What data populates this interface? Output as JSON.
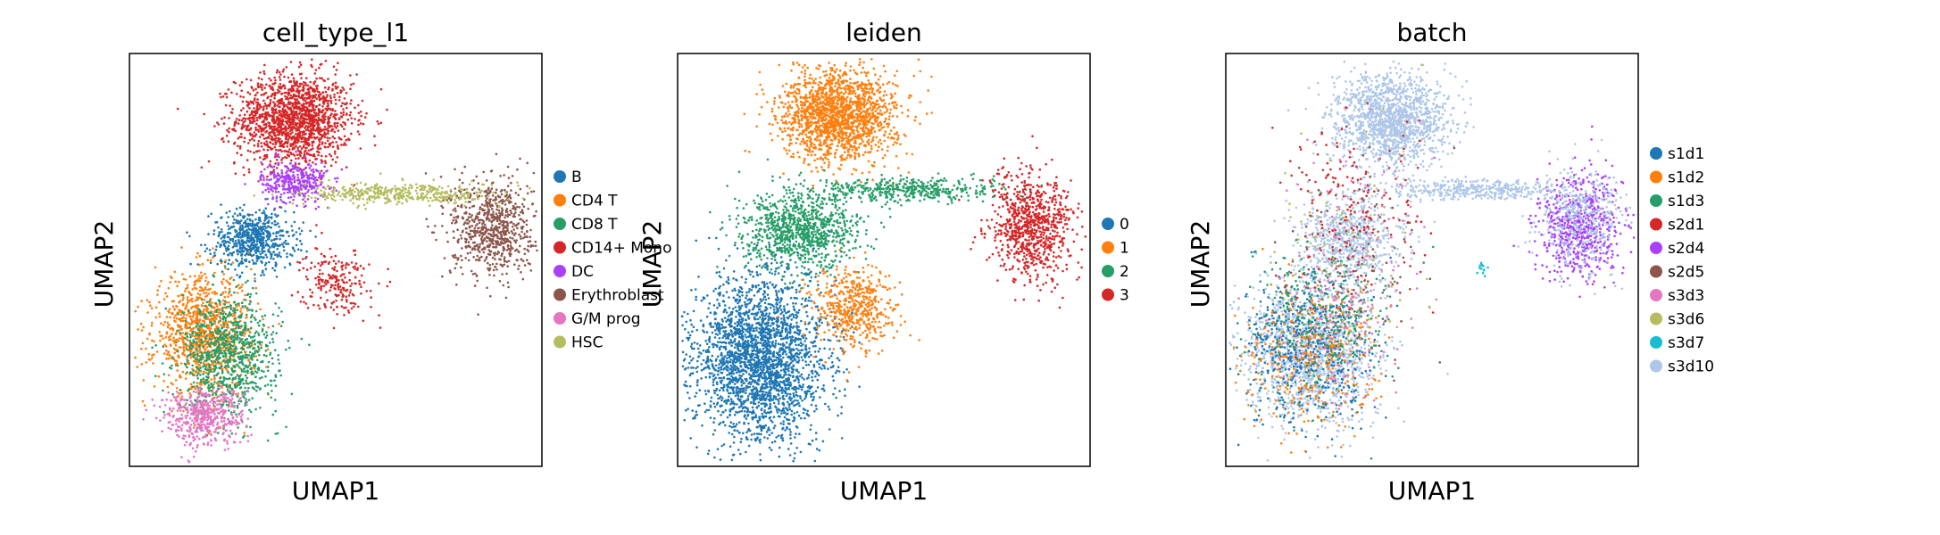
{
  "chart_data": [
    {
      "type": "scatter",
      "title": "cell_type_l1",
      "xlabel": "UMAP1",
      "ylabel": "UMAP2",
      "ticks": "none",
      "legend_position": "right",
      "categories": [
        "B",
        "CD4 T",
        "CD8 T",
        "CD14+ Mono",
        "DC",
        "Erythroblast",
        "G/M prog",
        "HSC"
      ],
      "colors": [
        "#1f77b4",
        "#ff7f0e",
        "#279e68",
        "#d62728",
        "#aa40fc",
        "#8c564b",
        "#e377c2",
        "#b5bd61"
      ],
      "clusters": [
        {
          "category": "CD14+ Mono",
          "x": 0.4,
          "y": 0.84,
          "sx": 0.07,
          "sy": 0.055,
          "n": 1600
        },
        {
          "category": "DC",
          "x": 0.4,
          "y": 0.69,
          "sx": 0.04,
          "sy": 0.025,
          "n": 350
        },
        {
          "category": "B",
          "x": 0.3,
          "y": 0.55,
          "sx": 0.05,
          "sy": 0.035,
          "n": 650
        },
        {
          "category": "CD4 T",
          "x": 0.18,
          "y": 0.32,
          "sx": 0.06,
          "sy": 0.07,
          "n": 1100
        },
        {
          "category": "CD8 T",
          "x": 0.24,
          "y": 0.27,
          "sx": 0.06,
          "sy": 0.07,
          "n": 900
        },
        {
          "category": "Erythroblast",
          "x": 0.88,
          "y": 0.58,
          "sx": 0.05,
          "sy": 0.06,
          "n": 750
        },
        {
          "category": "G/M prog",
          "x": 0.18,
          "y": 0.12,
          "sx": 0.05,
          "sy": 0.035,
          "n": 500
        },
        {
          "category": "HSC",
          "x": 0.66,
          "y": 0.66,
          "sx": 0.12,
          "sy": 0.013,
          "n": 420
        },
        {
          "category": "CD14+ Mono",
          "x": 0.5,
          "y": 0.45,
          "sx": 0.04,
          "sy": 0.04,
          "n": 220
        }
      ]
    },
    {
      "type": "scatter",
      "title": "leiden",
      "xlabel": "UMAP1",
      "ylabel": "UMAP2",
      "ticks": "none",
      "legend_position": "right",
      "categories": [
        "0",
        "1",
        "2",
        "3"
      ],
      "colors": [
        "#1f77b4",
        "#ff7f0e",
        "#279e68",
        "#d62728"
      ],
      "clusters": [
        {
          "category": "1",
          "x": 0.39,
          "y": 0.85,
          "sx": 0.07,
          "sy": 0.055,
          "n": 1700
        },
        {
          "category": "2",
          "x": 0.3,
          "y": 0.57,
          "sx": 0.07,
          "sy": 0.045,
          "n": 1000
        },
        {
          "category": "2",
          "x": 0.56,
          "y": 0.67,
          "sx": 0.11,
          "sy": 0.015,
          "n": 450
        },
        {
          "category": "0",
          "x": 0.2,
          "y": 0.26,
          "sx": 0.08,
          "sy": 0.1,
          "n": 2600
        },
        {
          "category": "1",
          "x": 0.43,
          "y": 0.38,
          "sx": 0.05,
          "sy": 0.05,
          "n": 520
        },
        {
          "category": "3",
          "x": 0.86,
          "y": 0.58,
          "sx": 0.05,
          "sy": 0.065,
          "n": 850
        }
      ]
    },
    {
      "type": "scatter",
      "title": "batch",
      "xlabel": "UMAP1",
      "ylabel": "UMAP2",
      "ticks": "none",
      "legend_position": "right",
      "categories": [
        "s1d1",
        "s1d2",
        "s1d3",
        "s2d1",
        "s2d4",
        "s2d5",
        "s3d3",
        "s3d6",
        "s3d7",
        "s3d10"
      ],
      "colors": [
        "#1f77b4",
        "#ff7f0e",
        "#279e68",
        "#d62728",
        "#aa40fc",
        "#8c564b",
        "#e377c2",
        "#b5bd61",
        "#17becf",
        "#aec7e8"
      ],
      "clusters": [
        {
          "category": "s3d10",
          "x": 0.4,
          "y": 0.84,
          "sx": 0.07,
          "sy": 0.055,
          "n": 1500
        },
        {
          "category": "s3d10",
          "x": 0.3,
          "y": 0.55,
          "sx": 0.06,
          "sy": 0.05,
          "n": 700
        },
        {
          "category": "s3d10",
          "x": 0.2,
          "y": 0.28,
          "sx": 0.08,
          "sy": 0.09,
          "n": 1500
        },
        {
          "category": "s1d1",
          "x": 0.2,
          "y": 0.28,
          "sx": 0.08,
          "sy": 0.09,
          "n": 550
        },
        {
          "category": "s1d2",
          "x": 0.2,
          "y": 0.26,
          "sx": 0.08,
          "sy": 0.09,
          "n": 350
        },
        {
          "category": "s1d3",
          "x": 0.24,
          "y": 0.35,
          "sx": 0.08,
          "sy": 0.1,
          "n": 300
        },
        {
          "category": "s2d1",
          "x": 0.3,
          "y": 0.6,
          "sx": 0.08,
          "sy": 0.12,
          "n": 200
        },
        {
          "category": "s2d4",
          "x": 0.86,
          "y": 0.58,
          "sx": 0.05,
          "sy": 0.065,
          "n": 650
        },
        {
          "category": "s3d10",
          "x": 0.86,
          "y": 0.6,
          "sx": 0.05,
          "sy": 0.06,
          "n": 400
        },
        {
          "category": "s3d10",
          "x": 0.6,
          "y": 0.67,
          "sx": 0.11,
          "sy": 0.012,
          "n": 400
        },
        {
          "category": "s3d3",
          "x": 0.3,
          "y": 0.45,
          "sx": 0.09,
          "sy": 0.14,
          "n": 200
        },
        {
          "category": "s2d5",
          "x": 0.3,
          "y": 0.5,
          "sx": 0.09,
          "sy": 0.14,
          "n": 80
        },
        {
          "category": "s3d6",
          "x": 0.3,
          "y": 0.5,
          "sx": 0.09,
          "sy": 0.14,
          "n": 80
        },
        {
          "category": "s3d7",
          "x": 0.62,
          "y": 0.48,
          "sx": 0.01,
          "sy": 0.01,
          "n": 15
        }
      ]
    }
  ]
}
